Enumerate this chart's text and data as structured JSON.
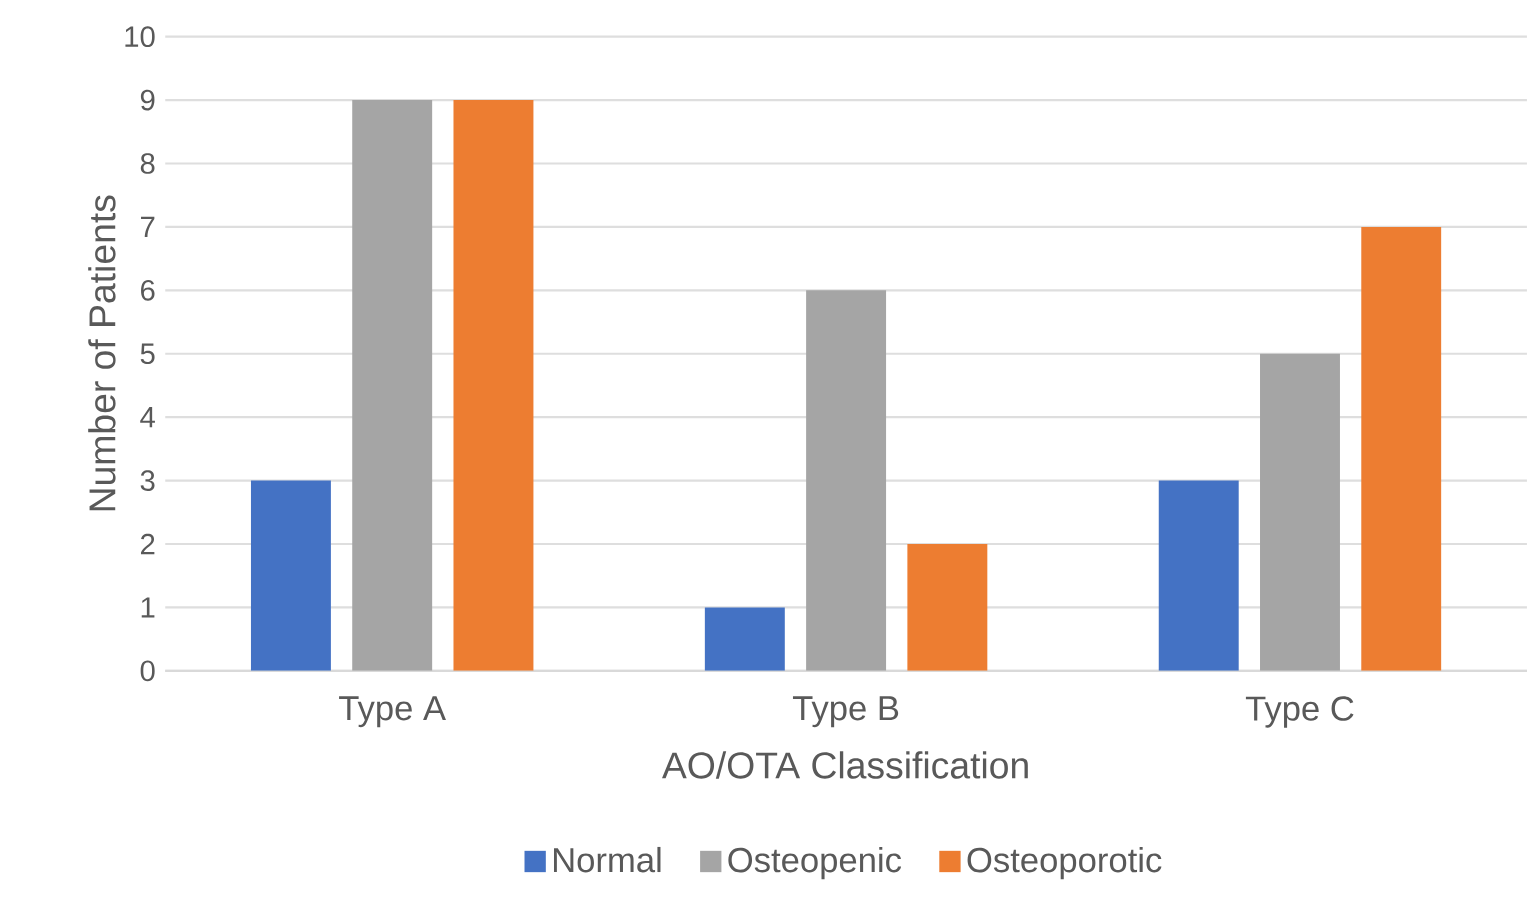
{
  "chart_data": {
    "type": "bar",
    "xlabel": "AO/OTA Classification",
    "ylabel": "Number of Patients",
    "categories": [
      "Type A",
      "Type B",
      "Type C"
    ],
    "series": [
      {
        "name": "Normal",
        "color": "#4472c4",
        "values": [
          3,
          1,
          3
        ]
      },
      {
        "name": "Osteopenic",
        "color": "#a5a5a5",
        "values": [
          9,
          6,
          5
        ]
      },
      {
        "name": "Osteoporotic",
        "color": "#ed7d31",
        "values": [
          9,
          2,
          7
        ]
      }
    ],
    "ylim": [
      0,
      10
    ],
    "yticks": [
      0,
      1,
      2,
      3,
      4,
      5,
      6,
      7,
      8,
      9,
      10
    ],
    "grid": "y",
    "legend": "bottom"
  }
}
